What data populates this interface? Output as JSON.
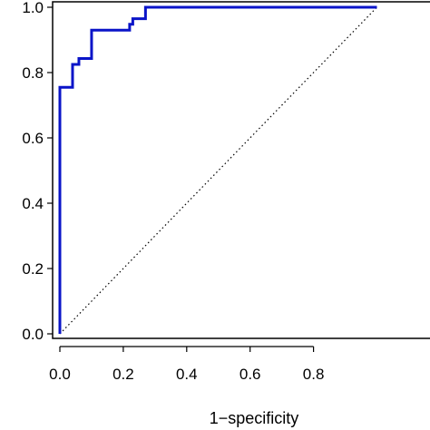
{
  "chart_data": {
    "type": "line",
    "title": "",
    "xlabel": "1−specificity",
    "ylabel": "",
    "xlim": [
      0,
      1
    ],
    "ylim": [
      0,
      1
    ],
    "x_ticks": [
      "0.0",
      "0.2",
      "0.4",
      "0.6",
      "0.8"
    ],
    "y_ticks": [
      "0.0",
      "0.2",
      "0.4",
      "0.6",
      "0.8",
      "1.0"
    ],
    "grid": false,
    "series": [
      {
        "color": "#0a14c8",
        "x": [
          0.0,
          0.0,
          0.0,
          0.0,
          0.04,
          0.04,
          0.06,
          0.06,
          0.1,
          0.1,
          0.22,
          0.22,
          0.23,
          0.23,
          0.27,
          0.27,
          1.0
        ],
        "y": [
          0.0,
          0.0,
          0.69,
          0.755,
          0.755,
          0.825,
          0.825,
          0.843,
          0.843,
          0.93,
          0.93,
          0.948,
          0.948,
          0.965,
          0.965,
          1.0,
          1.0
        ],
        "step": true
      }
    ],
    "reference_line": {
      "x": [
        0,
        1
      ],
      "y": [
        0,
        1
      ],
      "style": "dotted",
      "color": "#000000"
    }
  }
}
